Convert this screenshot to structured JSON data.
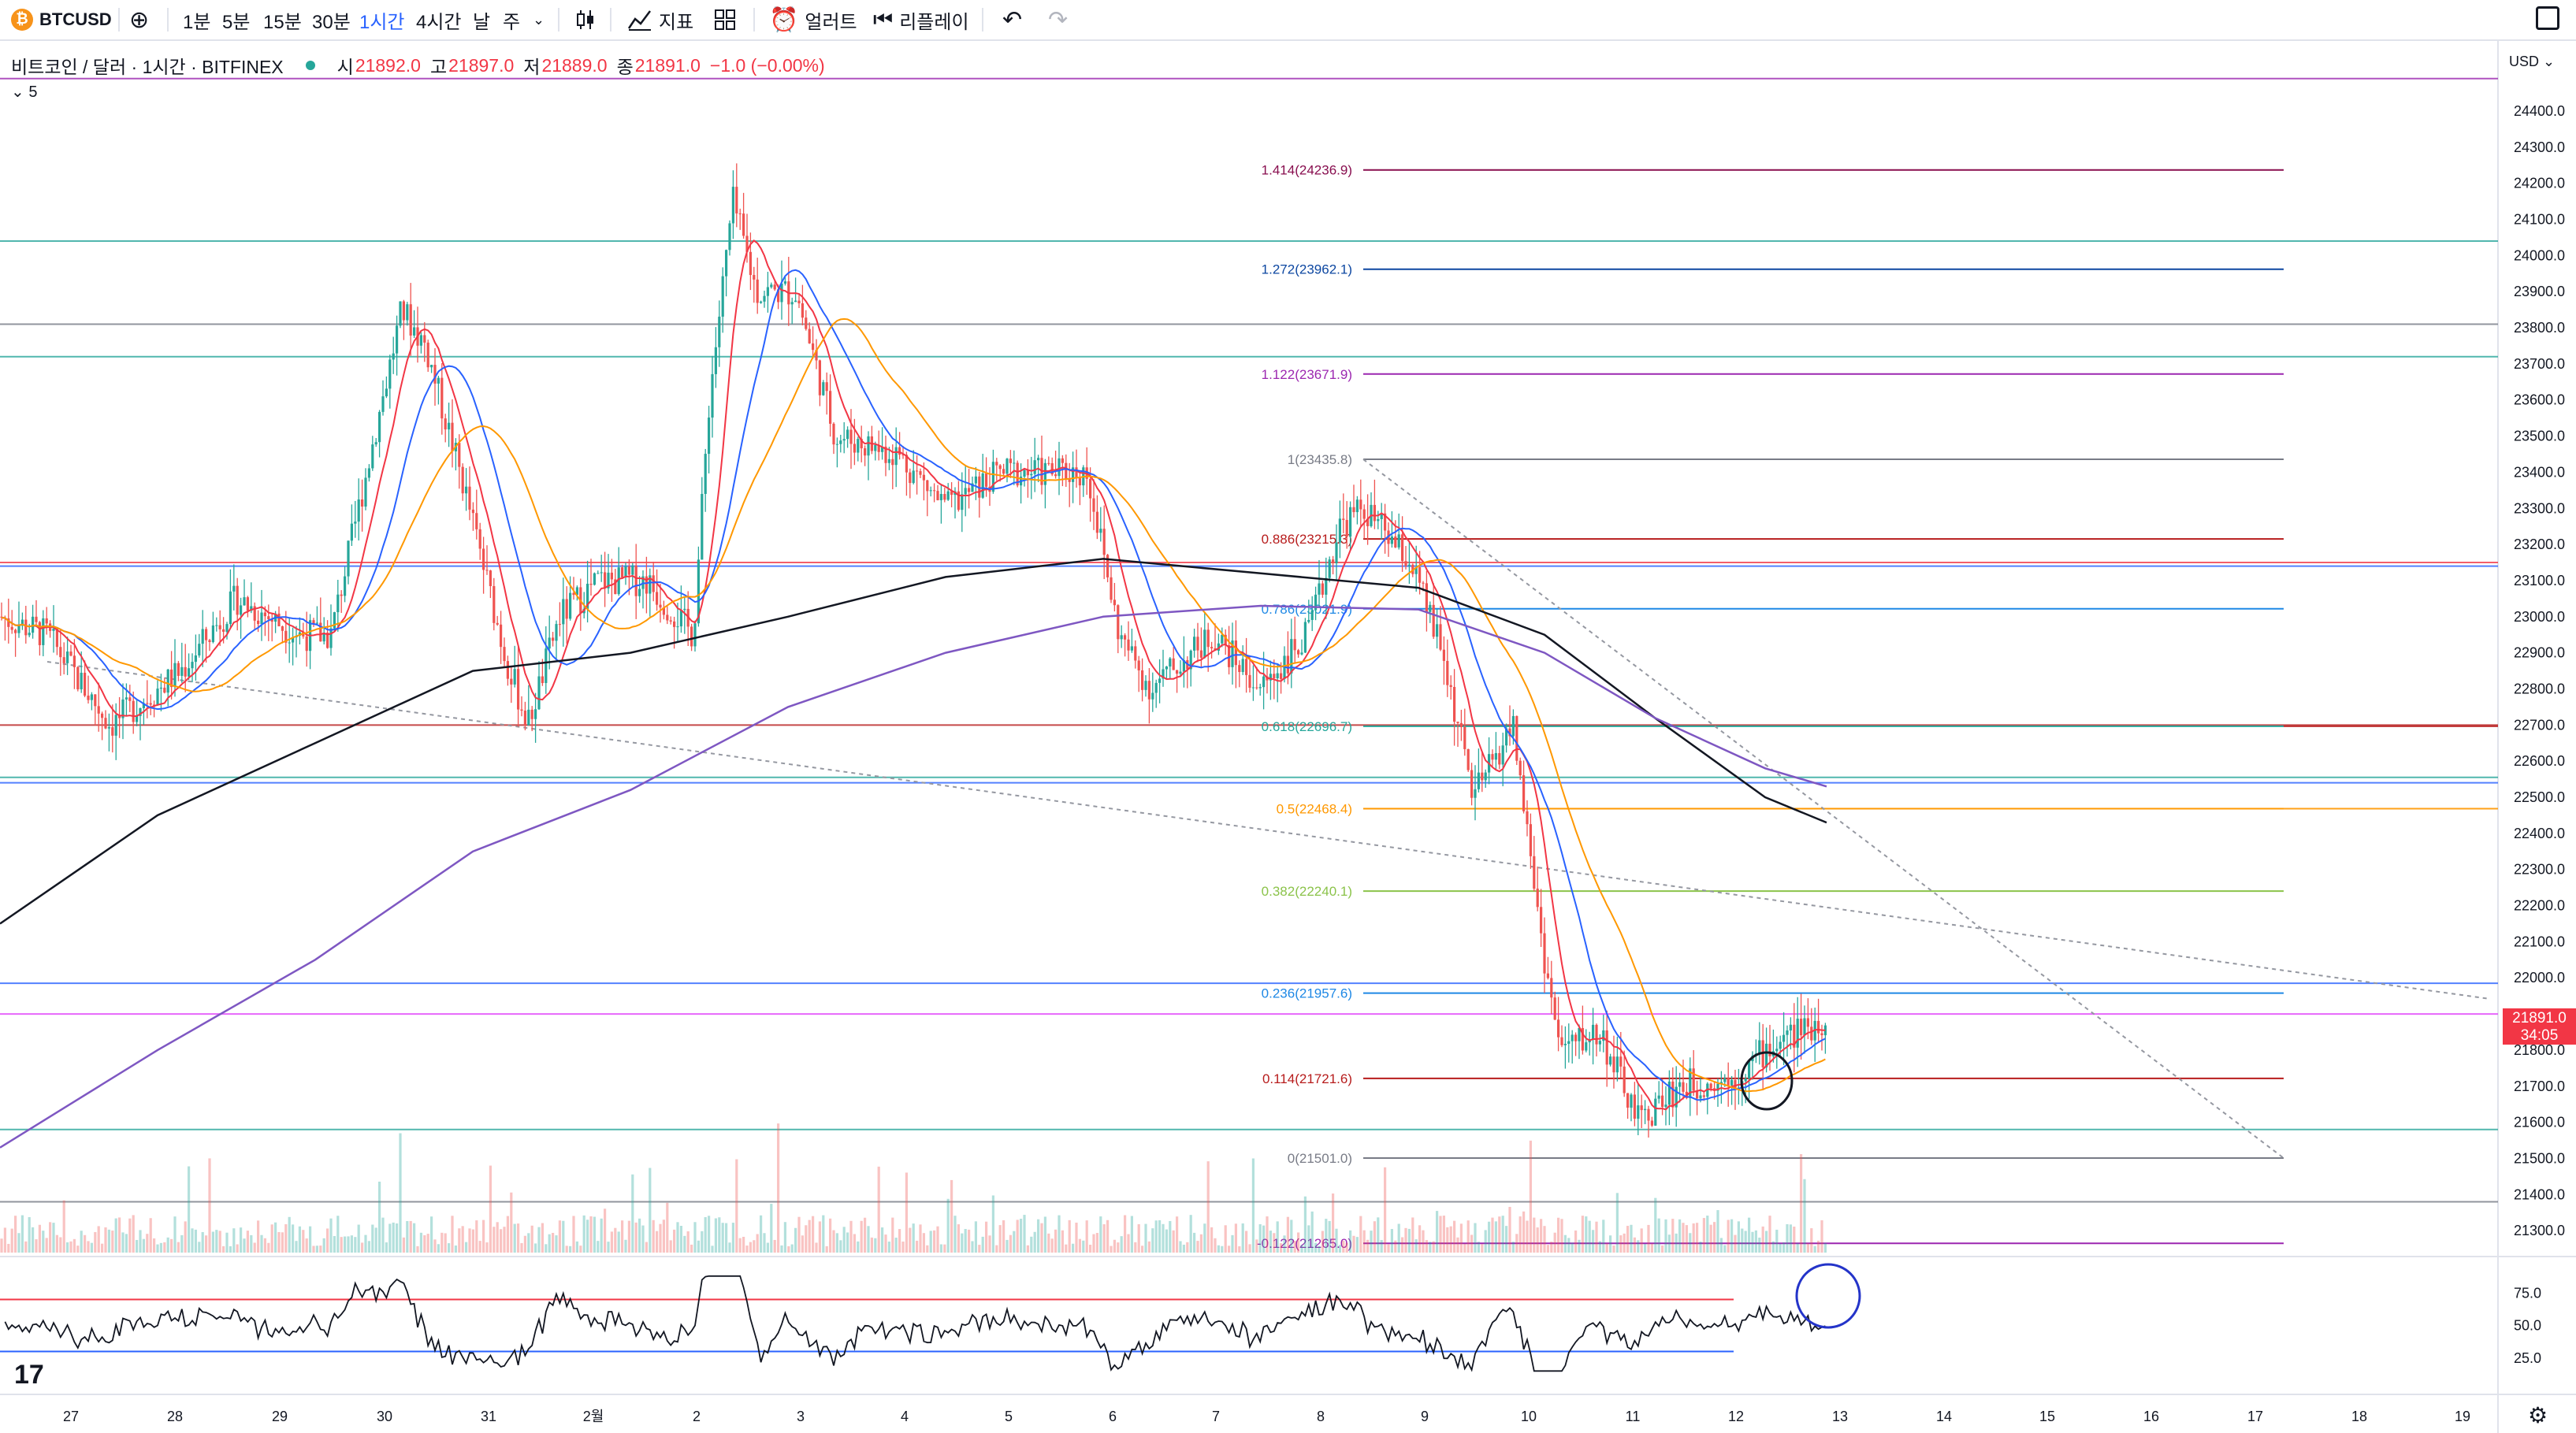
{
  "toolbar": {
    "symbol": "BTCUSD",
    "symbol_icon": "bitcoin-icon",
    "intervals": [
      "1분",
      "5분",
      "15분",
      "30분",
      "1시간",
      "4시간",
      "날",
      "주"
    ],
    "active_interval": "1시간",
    "indicators_label": "지표",
    "alert_label": "얼러트",
    "replay_label": "리플레이"
  },
  "header": {
    "title": "비트코인 / 달러 · 1시간 · BITFINEX",
    "status_color": "#26a69a",
    "open_label": "시",
    "open": "21892.0",
    "high_label": "고",
    "high": "21897.0",
    "low_label": "저",
    "low": "21889.0",
    "close_label": "종",
    "close": "21891.0",
    "change": "−1.0 (−0.00%)",
    "interval_badge": "5"
  },
  "price_axis": {
    "currency": "USD",
    "last_price": "21891.0",
    "countdown": "34:05",
    "last_price_color": "#f23645"
  },
  "chart_data": {
    "type": "candlestick",
    "symbol": "BTCUSD",
    "exchange": "BITFINEX",
    "interval": "1시간",
    "x_tick_labels": [
      "27",
      "28",
      "29",
      "30",
      "31",
      "2월",
      "2",
      "3",
      "4",
      "5",
      "6",
      "7",
      "8",
      "9",
      "10",
      "11",
      "12",
      "13",
      "14",
      "15",
      "16",
      "17",
      "18",
      "19"
    ],
    "y_tick_labels": [
      "24400.0",
      "24300.0",
      "24200.0",
      "24100.0",
      "24000.0",
      "23900.0",
      "23800.0",
      "23700.0",
      "23600.0",
      "23500.0",
      "23400.0",
      "23300.0",
      "23200.0",
      "23100.0",
      "23000.0",
      "22900.0",
      "22800.0",
      "22700.0",
      "22600.0",
      "22500.0",
      "22400.0",
      "22300.0",
      "22200.0",
      "22100.0",
      "22000.0",
      "21900.0",
      "21800.0",
      "21700.0",
      "21600.0",
      "21500.0",
      "21400.0",
      "21300.0"
    ],
    "ylim": [
      21250,
      24450
    ],
    "fibonacci": [
      {
        "label": "1.414(24236.9)",
        "price": 24236.9,
        "color": "#880e4f"
      },
      {
        "label": "1.272(23962.1)",
        "price": 23962.1,
        "color": "#0d47a1"
      },
      {
        "label": "1.122(23671.9)",
        "price": 23671.9,
        "color": "#9c27b0"
      },
      {
        "label": "1(23435.8)",
        "price": 23435.8,
        "color": "#787b86"
      },
      {
        "label": "0.886(23215.3)",
        "price": 23215.3,
        "color": "#b71c1c"
      },
      {
        "label": "0.786(23021.9)",
        "price": 23021.9,
        "color": "#1e88e5"
      },
      {
        "label": "0.618(22696.7)",
        "price": 22696.7,
        "color": "#26a69a"
      },
      {
        "label": "0.5(22468.4)",
        "price": 22468.4,
        "color": "#ff9800"
      },
      {
        "label": "0.382(22240.1)",
        "price": 22240.1,
        "color": "#8bc34a"
      },
      {
        "label": "0.236(21957.6)",
        "price": 21957.6,
        "color": "#1e88e5"
      },
      {
        "label": "0.114(21721.6)",
        "price": 21721.6,
        "color": "#b71c1c"
      },
      {
        "label": "0(21501.0)",
        "price": 21501.0,
        "color": "#787b86"
      },
      {
        "label": "-0.122(21265.0)",
        "price": 21265.0,
        "color": "#9c27b0"
      }
    ],
    "horizontal_lines": [
      {
        "price": 24490,
        "color": "#9c27b0"
      },
      {
        "price": 24040,
        "color": "#26a69a"
      },
      {
        "price": 23810,
        "color": "#787b86"
      },
      {
        "price": 23720,
        "color": "#26a69a"
      },
      {
        "price": 23150,
        "color": "#f23645"
      },
      {
        "price": 23140,
        "color": "#2962ff"
      },
      {
        "price": 22700,
        "color": "#b71c1c"
      },
      {
        "price": 22555,
        "color": "#26a69a"
      },
      {
        "price": 22540,
        "color": "#2962ff"
      },
      {
        "price": 21985,
        "color": "#2962ff"
      },
      {
        "price": 21900,
        "color": "#e040fb"
      },
      {
        "price": 21580,
        "color": "#26a69a"
      },
      {
        "price": 21380,
        "color": "#787b86"
      }
    ],
    "rsi": {
      "y_tick_labels": [
        "75.0",
        "50.0",
        "25.0"
      ],
      "upper_band": 70,
      "lower_band": 30
    },
    "colors": {
      "up": "#26a69a",
      "down": "#ef5350",
      "ma_fast": "#f23645",
      "ma_mid": "#2962ff",
      "ma_slow": "#ff9800",
      "ma_200": "#131722",
      "ma_purple": "#7e57c2"
    }
  }
}
